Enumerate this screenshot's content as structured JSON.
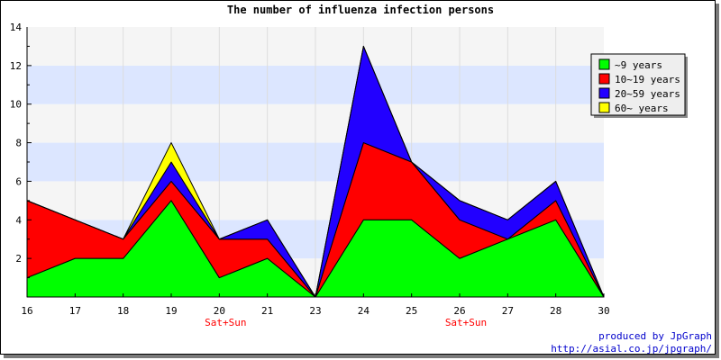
{
  "chart_data": {
    "type": "area",
    "stacked": true,
    "title": "The number of influenza infection persons",
    "x": [
      "16",
      "17",
      "18",
      "19",
      "20",
      "21",
      "23",
      "24",
      "25",
      "26",
      "27",
      "28",
      "30"
    ],
    "x_annotations": [
      {
        "x": "20",
        "text": "Sat+Sun"
      },
      {
        "x": "26",
        "text": "Sat+Sun"
      }
    ],
    "ylim": [
      0,
      14
    ],
    "yticks": [
      2,
      4,
      6,
      8,
      10,
      12,
      14
    ],
    "grid": "horizontal bands",
    "legend_position": "top-right",
    "series": [
      {
        "name": "~9 years",
        "color": "#00ff00",
        "values": [
          1,
          2,
          2,
          5,
          1,
          2,
          0,
          4,
          4,
          2,
          3,
          4,
          0
        ]
      },
      {
        "name": "10~19 years",
        "color": "#ff0000",
        "values": [
          4,
          2,
          1,
          1,
          2,
          1,
          0,
          4,
          3,
          2,
          0,
          1,
          0
        ]
      },
      {
        "name": "20~59 years",
        "color": "#2200ff",
        "values": [
          0,
          0,
          0,
          1,
          0,
          1,
          0,
          5,
          0,
          1,
          1,
          1,
          0
        ]
      },
      {
        "name": "60~ years",
        "color": "#ffff00",
        "values": [
          0,
          0,
          0,
          1,
          0,
          0,
          0,
          0,
          0,
          0,
          0,
          0,
          0
        ]
      }
    ]
  },
  "credits": {
    "line1": "produced by JpGraph",
    "line2": "http://asial.co.jp/jpgraph/"
  },
  "colors": {
    "band_light": "#f5f5f5",
    "band_blue": "#dce6ff",
    "annotation": "#ff0000"
  }
}
